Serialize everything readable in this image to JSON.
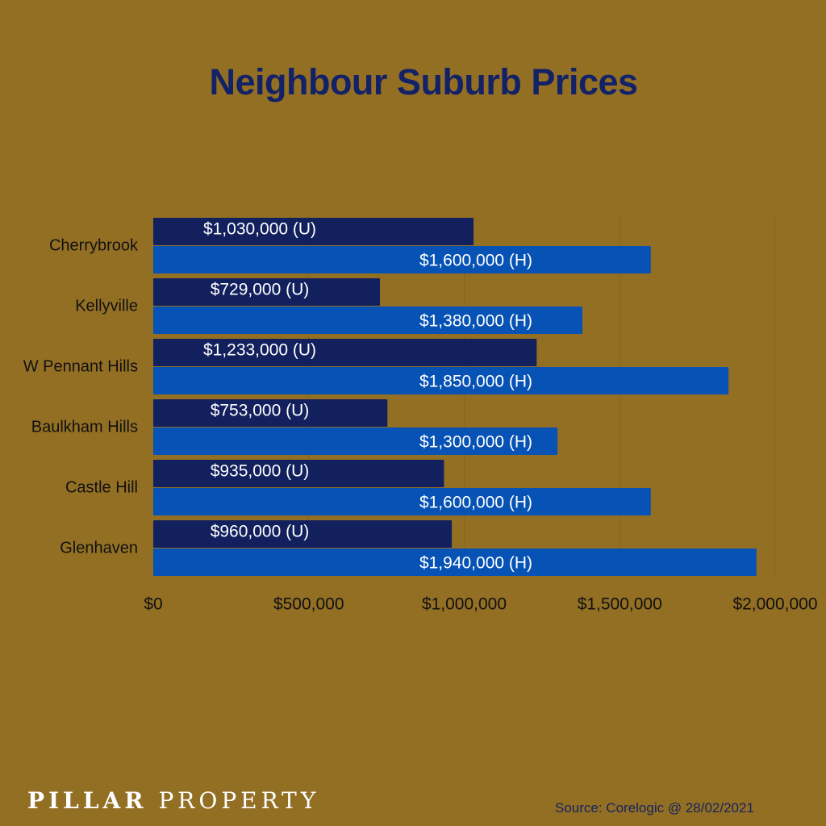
{
  "title": "Neighbour Suburb Prices",
  "brand": {
    "part1": "PILLAR",
    "part2": "PROPERTY"
  },
  "source": "Source: Corelogic @ 28/02/2021",
  "colors": {
    "background": "#936f24",
    "units": "#12205e",
    "houses": "#0652b5",
    "title": "#132266"
  },
  "chart_data": {
    "type": "bar",
    "orientation": "horizontal",
    "categories": [
      "Cherrybrook",
      "Kellyville",
      "W Pennant Hills",
      "Baulkham Hills",
      "Castle Hill",
      "Glenhaven"
    ],
    "series": [
      {
        "name": "",
        "values": [
          1030000,
          729000,
          1233000,
          753000,
          935000,
          960000
        ],
        "labels": [
          "$1,030,000 (U)",
          "$729,000 (U)",
          "$1,233,000 (U)",
          "$753,000 (U)",
          "$935,000 (U)",
          "$960,000 (U)"
        ]
      },
      {
        "name": "",
        "values": [
          1600000,
          1380000,
          1850000,
          1300000,
          1600000,
          1940000
        ],
        "labels": [
          "$1,600,000 (H)",
          "$1,380,000 (H)",
          "$1,850,000 (H)",
          "$1,300,000 (H)",
          "$1,600,000 (H)",
          "$1,940,000 (H)"
        ]
      }
    ],
    "xticks": [
      0,
      500000,
      1000000,
      1500000,
      2000000
    ],
    "xtick_labels": [
      "$0",
      "$500,000",
      "$1,000,000",
      "$1,500,000",
      "$2,000,000"
    ],
    "xlim": [
      0,
      2000000
    ],
    "xlabel": "",
    "ylabel": "",
    "grid": true,
    "legend": "none"
  }
}
